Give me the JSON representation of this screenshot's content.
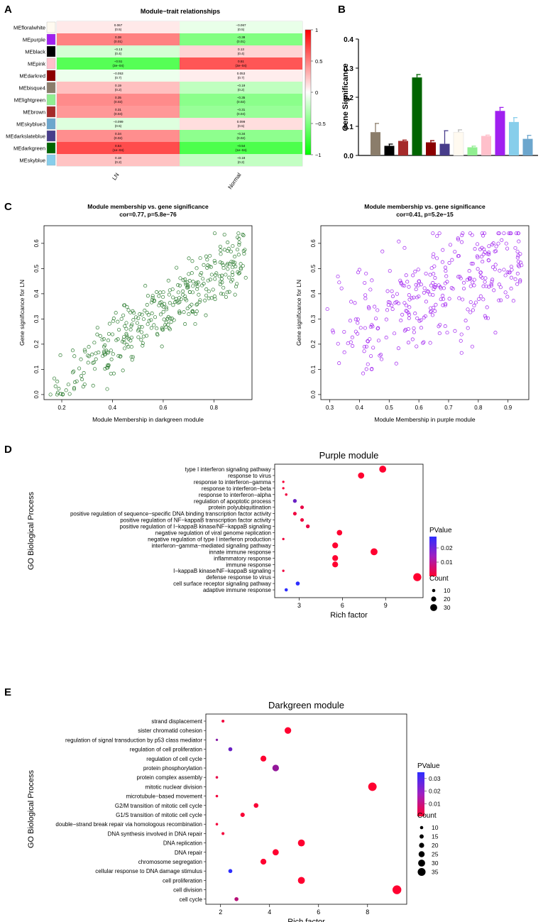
{
  "panels": {
    "A": "A",
    "B": "B",
    "C": "C",
    "D": "D",
    "E": "E"
  },
  "heatmap": {
    "title": "Module−trait relationships",
    "columns": [
      "LN",
      "Normal"
    ],
    "rows": [
      {
        "name": "MEfloralwhite",
        "color": "#fffaf0",
        "ln": "0.067",
        "ln_p": "(0.5)",
        "n": "−0.067",
        "n_p": "(0.5)"
      },
      {
        "name": "MEpurple",
        "color": "#a020f0",
        "ln": "0.38",
        "ln_p": "(0.01)",
        "n": "−0.38",
        "n_p": "(0.01)"
      },
      {
        "name": "MEblack",
        "color": "#000000",
        "ln": "−0.13",
        "ln_p": "(0.4)",
        "n": "0.13",
        "n_p": "(0.4)"
      },
      {
        "name": "MEpink",
        "color": "#ffc0cb",
        "ln": "−0.51",
        "ln_p": "(3e−04)",
        "n": "0.51",
        "n_p": "(3e−04)"
      },
      {
        "name": "MEdarkred",
        "color": "#8b0000",
        "ln": "−0.053",
        "ln_p": "(0.7)",
        "n": "0.053",
        "n_p": "(0.7)"
      },
      {
        "name": "MEbisque4",
        "color": "#8b7d6b",
        "ln": "0.19",
        "ln_p": "(0.2)",
        "n": "−0.19",
        "n_p": "(0.2)"
      },
      {
        "name": "MElightgreen",
        "color": "#90ee90",
        "ln": "0.35",
        "ln_p": "(0.02)",
        "n": "−0.35",
        "n_p": "(0.02)"
      },
      {
        "name": "MEbrown",
        "color": "#a52a2a",
        "ln": "0.31",
        "ln_p": "(0.04)",
        "n": "−0.31",
        "n_p": "(0.04)"
      },
      {
        "name": "MEskyblue3",
        "color": "#6ca6cd",
        "ln": "−0.099",
        "ln_p": "(0.5)",
        "n": "0.099",
        "n_p": "(0.5)"
      },
      {
        "name": "MEdarkslateblue",
        "color": "#483d8b",
        "ln": "0.34",
        "ln_p": "(0.02)",
        "n": "−0.34",
        "n_p": "(0.02)"
      },
      {
        "name": "MEdarkgreen",
        "color": "#006400",
        "ln": "0.54",
        "ln_p": "(1e−04)",
        "n": "−0.54",
        "n_p": "(1e−04)"
      },
      {
        "name": "MEskyblue",
        "color": "#87ceeb",
        "ln": "0.18",
        "ln_p": "(0.2)",
        "n": "−0.18",
        "n_p": "(0.2)"
      }
    ],
    "scale_ticks": [
      "1",
      "0.5",
      "0",
      "−0.5",
      "−1"
    ]
  },
  "chart_data": [
    {
      "type": "heatmap",
      "title": "Module−trait relationships",
      "columns": [
        "LN",
        "Normal"
      ],
      "rows": [
        "MEfloralwhite",
        "MEpurple",
        "MEblack",
        "MEpink",
        "MEdarkred",
        "MEbisque4",
        "MElightgreen",
        "MEbrown",
        "MEskyblue3",
        "MEdarkslateblue",
        "MEdarkgreen",
        "MEskyblue"
      ],
      "values_LN": [
        0.067,
        0.38,
        -0.13,
        -0.51,
        -0.053,
        0.19,
        0.35,
        0.31,
        -0.099,
        0.34,
        0.54,
        0.18
      ],
      "values_Normal": [
        -0.067,
        -0.38,
        0.13,
        0.51,
        0.053,
        -0.19,
        -0.35,
        -0.31,
        0.099,
        -0.34,
        -0.54,
        -0.18
      ],
      "color_range": [
        -1,
        1
      ]
    },
    {
      "type": "bar",
      "ylabel": "Gene Significance",
      "ylim": [
        0,
        0.4
      ],
      "yticks": [
        "0.0",
        "0.1",
        "0.2",
        "0.3",
        "0.4"
      ],
      "colors": [
        "#8b7d6b",
        "#000000",
        "#a52a2a",
        "#006400",
        "#8b0000",
        "#483d8b",
        "#fffaf0",
        "#90ee90",
        "#ffc0cb",
        "#a020f0",
        "#87ceeb",
        "#6ca6cd"
      ],
      "values": [
        0.08,
        0.033,
        0.05,
        0.268,
        0.045,
        0.04,
        0.08,
        0.028,
        0.067,
        0.153,
        0.115,
        0.057
      ],
      "errors": [
        0.03,
        0.006,
        0.003,
        0.01,
        0.006,
        0.045,
        0.008,
        0.004,
        0.003,
        0.012,
        0.015,
        0.012
      ]
    },
    {
      "type": "scatter",
      "title": "Module membership vs. gene significance",
      "subtitle": "cor=0.77, p=5.8e−76",
      "xlabel": "Module Membership in darkgreen module",
      "ylabel": "Gene significance for  LN",
      "xlim": [
        0.13,
        0.95
      ],
      "ylim": [
        -0.02,
        0.67
      ],
      "xticks": [
        "0.2",
        "0.4",
        "0.6",
        "0.8"
      ],
      "yticks": [
        "0.0",
        "0.1",
        "0.2",
        "0.3",
        "0.4",
        "0.5",
        "0.6"
      ],
      "color": "#2e7d32",
      "n_points": 360,
      "slope": 0.72,
      "intercept": -0.1
    },
    {
      "type": "scatter",
      "title": "Module membership vs. gene significance",
      "subtitle": "cor=0.41, p=5.2e−15",
      "xlabel": "Module Membership in purple module",
      "ylabel": "Gene significance for  LN",
      "xlim": [
        0.27,
        0.97
      ],
      "ylim": [
        -0.02,
        0.67
      ],
      "xticks": [
        "0.3",
        "0.4",
        "0.5",
        "0.6",
        "0.7",
        "0.8",
        "0.9"
      ],
      "yticks": [
        "0.0",
        "0.1",
        "0.2",
        "0.3",
        "0.4",
        "0.5",
        "0.6"
      ],
      "color": "#a020f0",
      "n_points": 330,
      "slope": 0.45,
      "intercept": -0.02
    },
    {
      "type": "scatter",
      "title": "Purple module",
      "ylabel": "GO Biological Process",
      "xlabel": "Rich factor",
      "xlim": [
        1.3,
        11.6
      ],
      "xticks": [
        3,
        6,
        9
      ],
      "pvalue_range": [
        0.0,
        0.028
      ],
      "legend_pvalue_ticks": [
        "0.02",
        "0.01"
      ],
      "legend_count": [
        10,
        20,
        30
      ],
      "terms": [
        {
          "term": "type I interferon signaling pathway",
          "rich": 8.8,
          "count": 30,
          "p": 0.0
        },
        {
          "term": "response to virus",
          "rich": 7.3,
          "count": 26,
          "p": 0.0
        },
        {
          "term": "response to interferon−gamma",
          "rich": 1.9,
          "count": 5,
          "p": 0.001
        },
        {
          "term": "response to interferon−beta",
          "rich": 1.9,
          "count": 5,
          "p": 0.001
        },
        {
          "term": "response to interferon−alpha",
          "rich": 2.1,
          "count": 6,
          "p": 0.002
        },
        {
          "term": "regulation of apoptotic process",
          "rich": 2.7,
          "count": 13,
          "p": 0.02
        },
        {
          "term": "protein polyubiquitination",
          "rich": 3.2,
          "count": 12,
          "p": 0.003
        },
        {
          "term": "positive regulation of sequence−specific DNA binding transcription factor activity",
          "rich": 2.7,
          "count": 12,
          "p": 0.002
        },
        {
          "term": "positive regulation of NF−kappaB transcription factor activity",
          "rich": 3.2,
          "count": 12,
          "p": 0.002
        },
        {
          "term": "positive regulation of I−kappaB kinase/NF−kappaB signaling",
          "rich": 3.6,
          "count": 13,
          "p": 0.003
        },
        {
          "term": "negative regulation of viral genome replication",
          "rich": 5.8,
          "count": 22,
          "p": 0.0
        },
        {
          "term": "negative regulation of type I interferon production",
          "rich": 1.9,
          "count": 5,
          "p": 0.002
        },
        {
          "term": "interferon−gamma−mediated signaling pathway",
          "rich": 5.5,
          "count": 24,
          "p": 0.0
        },
        {
          "term": "innate immune response",
          "rich": 8.2,
          "count": 30,
          "p": 0.0
        },
        {
          "term": "inflammatory response",
          "rich": 5.5,
          "count": 24,
          "p": 0.0
        },
        {
          "term": "immune response",
          "rich": 5.5,
          "count": 24,
          "p": 0.0
        },
        {
          "term": "I−kappaB kinase/NF−kappaB signaling",
          "rich": 1.9,
          "count": 5,
          "p": 0.002
        },
        {
          "term": "defense response to virus",
          "rich": 11.2,
          "count": 36,
          "p": 0.0
        },
        {
          "term": "cell surface receptor signaling pathway",
          "rich": 2.9,
          "count": 14,
          "p": 0.028
        },
        {
          "term": "adaptive immune response",
          "rich": 2.1,
          "count": 10,
          "p": 0.028
        }
      ]
    },
    {
      "type": "scatter",
      "title": "Darkgreen module",
      "ylabel": "GO Biological Process",
      "xlabel": "Rich factor",
      "xlim": [
        1.4,
        9.6
      ],
      "xticks": [
        2,
        4,
        6,
        8
      ],
      "pvalue_range": [
        0.0,
        0.035
      ],
      "legend_pvalue_ticks": [
        "0.03",
        "0.02",
        "0.01"
      ],
      "legend_count": [
        10,
        15,
        20,
        25,
        30,
        35
      ],
      "terms": [
        {
          "term": "strand displacement",
          "rich": 2.1,
          "count": 8,
          "p": 0.002
        },
        {
          "term": "sister chromatid cohesion",
          "rich": 4.75,
          "count": 28,
          "p": 0.0
        },
        {
          "term": "regulation of signal transduction by p53 class mediator",
          "rich": 1.85,
          "count": 5,
          "p": 0.02
        },
        {
          "term": "regulation of cell proliferation",
          "rich": 2.4,
          "count": 14,
          "p": 0.025
        },
        {
          "term": "regulation of cell cycle",
          "rich": 3.75,
          "count": 24,
          "p": 0.0
        },
        {
          "term": "protein phosphorylation",
          "rich": 4.25,
          "count": 28,
          "p": 0.018
        },
        {
          "term": "protein complex assembly",
          "rich": 1.85,
          "count": 6,
          "p": 0.004
        },
        {
          "term": "mitotic nuclear division",
          "rich": 8.2,
          "count": 38,
          "p": 0.0
        },
        {
          "term": "microtubule−based movement",
          "rich": 1.85,
          "count": 6,
          "p": 0.002
        },
        {
          "term": "G2/M transition of mitotic cell cycle",
          "rich": 3.45,
          "count": 18,
          "p": 0.001
        },
        {
          "term": "G1/S transition of mitotic cell cycle",
          "rich": 2.9,
          "count": 16,
          "p": 0.001
        },
        {
          "term": "double−strand break repair via homologous recombination",
          "rich": 1.85,
          "count": 6,
          "p": 0.002
        },
        {
          "term": "DNA synthesis involved in DNA repair",
          "rich": 2.1,
          "count": 8,
          "p": 0.002
        },
        {
          "term": "DNA replication",
          "rich": 5.3,
          "count": 30,
          "p": 0.0
        },
        {
          "term": "DNA repair",
          "rich": 4.25,
          "count": 26,
          "p": 0.0
        },
        {
          "term": "chromosome segregation",
          "rich": 3.75,
          "count": 24,
          "p": 0.0
        },
        {
          "term": "cellular response to DNA damage stimulus",
          "rich": 2.4,
          "count": 14,
          "p": 0.035
        },
        {
          "term": "cell proliferation",
          "rich": 5.3,
          "count": 30,
          "p": 0.0
        },
        {
          "term": "cell division",
          "rich": 9.2,
          "count": 40,
          "p": 0.0
        },
        {
          "term": "cell cycle",
          "rich": 2.65,
          "count": 14,
          "p": 0.012
        }
      ]
    }
  ],
  "legend": {
    "pvalue": "PValue",
    "count": "Count"
  }
}
